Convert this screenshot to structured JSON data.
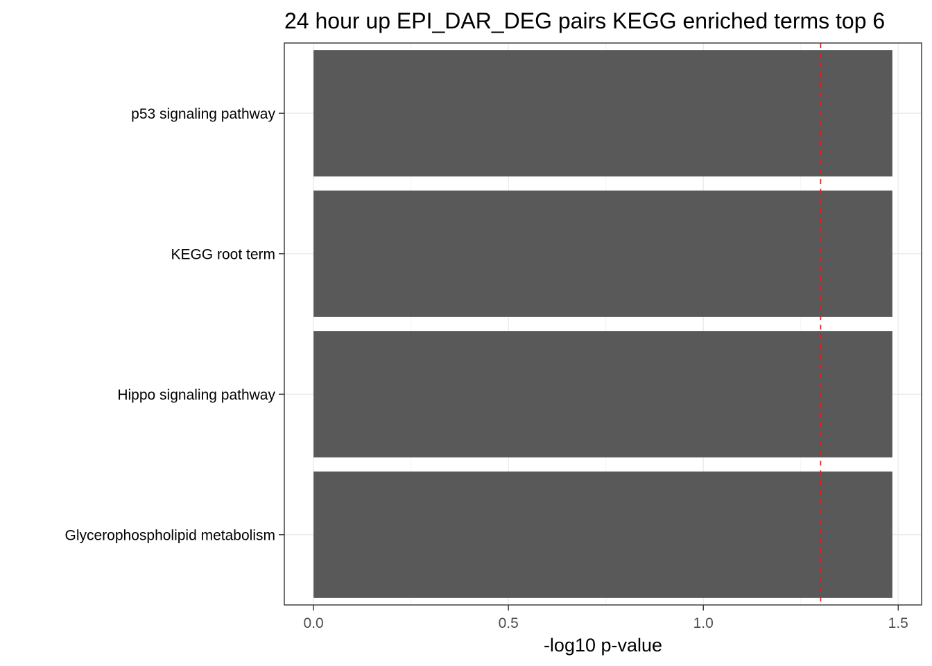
{
  "chart_data": {
    "type": "bar",
    "orientation": "horizontal",
    "title": "24 hour up EPI_DAR_DEG pairs  KEGG enriched terms top 6",
    "xlabel": "-log10 p-value",
    "ylabel": "",
    "categories": [
      "p53 signaling pathway",
      "KEGG root term",
      "Hippo signaling pathway",
      "Glycerophospholipid metabolism"
    ],
    "values": [
      1.485,
      1.485,
      1.485,
      1.485
    ],
    "xlim": [
      -0.075,
      1.56
    ],
    "xticks": [
      0.0,
      0.5,
      1.0,
      1.5
    ],
    "xtick_labels": [
      "0.0",
      "0.5",
      "1.0",
      "1.5"
    ],
    "threshold_line": {
      "value": 1.30103,
      "style": "dashed",
      "color": "#e31a1c"
    },
    "bar_color": "#595959",
    "grid": true,
    "panel_border": true
  }
}
